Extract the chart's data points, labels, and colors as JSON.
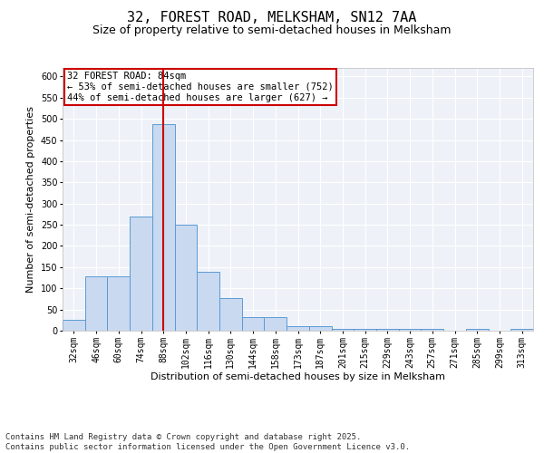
{
  "title1": "32, FOREST ROAD, MELKSHAM, SN12 7AA",
  "title2": "Size of property relative to semi-detached houses in Melksham",
  "xlabel": "Distribution of semi-detached houses by size in Melksham",
  "ylabel": "Number of semi-detached properties",
  "categories": [
    "32sqm",
    "46sqm",
    "60sqm",
    "74sqm",
    "88sqm",
    "102sqm",
    "116sqm",
    "130sqm",
    "144sqm",
    "158sqm",
    "173sqm",
    "187sqm",
    "201sqm",
    "215sqm",
    "229sqm",
    "243sqm",
    "257sqm",
    "271sqm",
    "285sqm",
    "299sqm",
    "313sqm"
  ],
  "values": [
    25,
    128,
    128,
    270,
    487,
    250,
    140,
    78,
    32,
    32,
    10,
    10,
    5,
    5,
    5,
    5,
    5,
    0,
    5,
    0,
    5
  ],
  "bar_color": "#c9d9f0",
  "bar_edge_color": "#5b9bd5",
  "red_line_x": 4,
  "red_line_color": "#cc0000",
  "annotation_text": "32 FOREST ROAD: 84sqm\n← 53% of semi-detached houses are smaller (752)\n44% of semi-detached houses are larger (627) →",
  "annotation_box_color": "#ffffff",
  "annotation_box_edge": "#cc0000",
  "footer": "Contains HM Land Registry data © Crown copyright and database right 2025.\nContains public sector information licensed under the Open Government Licence v3.0.",
  "ylim": [
    0,
    620
  ],
  "yticks": [
    0,
    50,
    100,
    150,
    200,
    250,
    300,
    350,
    400,
    450,
    500,
    550,
    600
  ],
  "plot_bg_color": "#eef2f8",
  "fig_bg_color": "#ffffff",
  "title1_fontsize": 11,
  "title2_fontsize": 9,
  "xlabel_fontsize": 8,
  "ylabel_fontsize": 8,
  "footer_fontsize": 6.5,
  "tick_fontsize": 7,
  "annotation_fontsize": 7.5
}
